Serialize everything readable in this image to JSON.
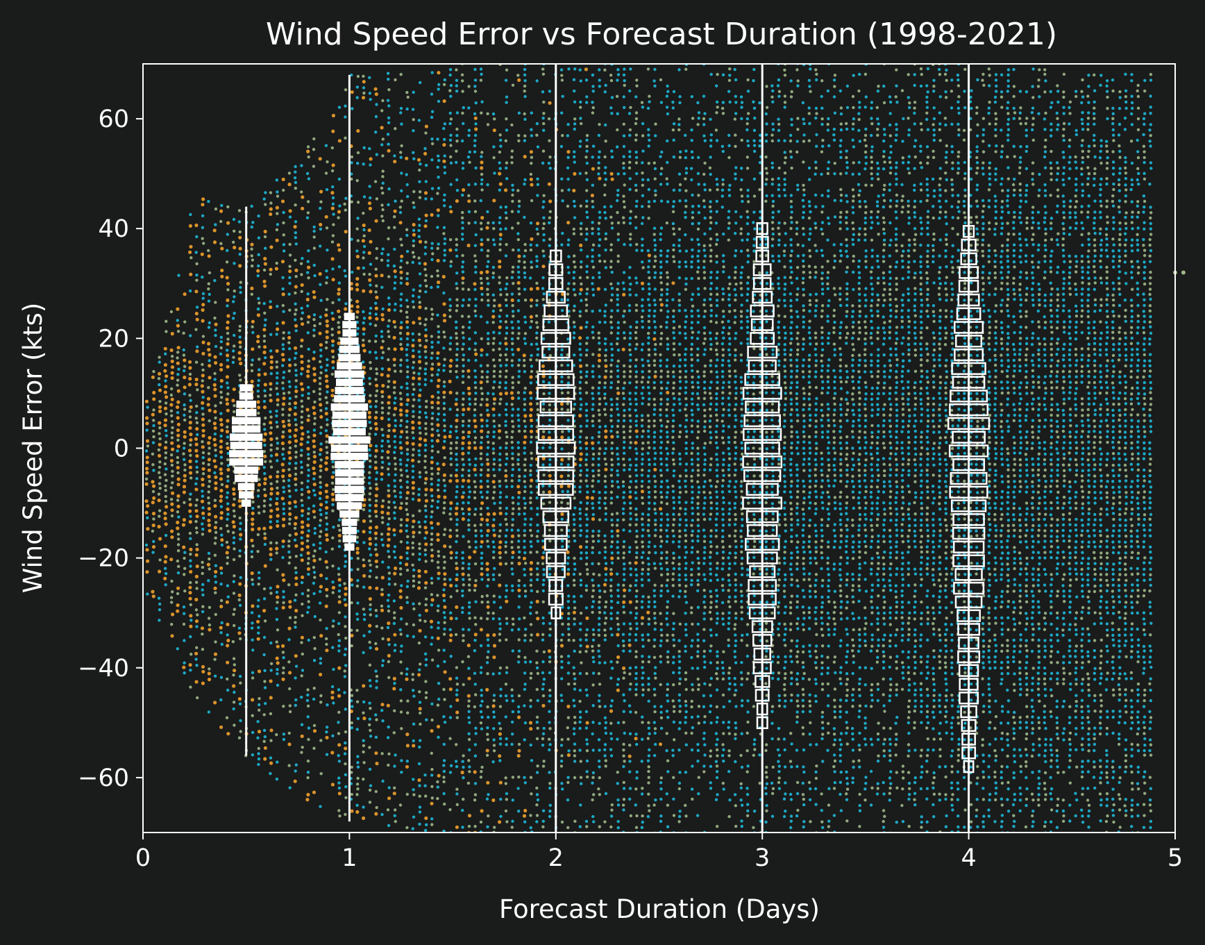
{
  "chart_data": {
    "type": "scatter",
    "title": "Wind Speed Error vs Forecast Duration (1998-2021)",
    "xlabel": "Forecast Duration (Days)",
    "ylabel": "Wind Speed Error (kts)",
    "xlim": [
      0,
      5
    ],
    "ylim": [
      -70,
      70
    ],
    "xticks": [
      0,
      1,
      2,
      3,
      4,
      5
    ],
    "yticks": [
      -60,
      -40,
      -20,
      0,
      20,
      40,
      60
    ],
    "grid": false,
    "legend": "none",
    "colors": {
      "background": "#1a1b1b",
      "axes": "#ffffff",
      "text": "#ffffff",
      "scatter_short_lead": "#f0a22e",
      "scatter_mid_lead": "#9fb88a",
      "scatter_long_lead": "#1eb8d8",
      "distribution_markers": "#ffffff"
    },
    "scatter_envelope": [
      {
        "x": 0.0,
        "y_min": -25,
        "y_max": 7
      },
      {
        "x": 0.25,
        "y_min": -45,
        "y_max": 46
      },
      {
        "x": 0.5,
        "y_min": -56,
        "y_max": 44
      },
      {
        "x": 0.75,
        "y_min": -63,
        "y_max": 52
      },
      {
        "x": 1.0,
        "y_min": -68,
        "y_max": 68
      },
      {
        "x": 1.5,
        "y_min": -70,
        "y_max": 70
      },
      {
        "x": 2.0,
        "y_min": -70,
        "y_max": 70
      },
      {
        "x": 3.0,
        "y_min": -70,
        "y_max": 70
      },
      {
        "x": 4.0,
        "y_min": -70,
        "y_max": 70
      },
      {
        "x": 4.88,
        "y_min": -70,
        "y_max": 68
      }
    ],
    "scatter_outliers": [
      {
        "x": 5.0,
        "y": 32
      },
      {
        "x": 5.04,
        "y": 32
      }
    ],
    "distributions": [
      {
        "x": 0.5,
        "y_min": -56,
        "y_max": 44,
        "q_low": -10,
        "q_high": 12,
        "peak": 0,
        "max_half_width_days": 0.09
      },
      {
        "x": 1.0,
        "y_min": -68,
        "y_max": 68,
        "q_low": -18,
        "q_high": 25,
        "peak": 2,
        "max_half_width_days": 0.1
      },
      {
        "x": 2.0,
        "y_min": -70,
        "y_max": 70,
        "q_low": -30,
        "q_high": 36,
        "peak": 2,
        "max_half_width_days": 0.1
      },
      {
        "x": 3.0,
        "y_min": -70,
        "y_max": 70,
        "q_low": -50,
        "q_high": 40,
        "peak": 0,
        "max_half_width_days": 0.1
      },
      {
        "x": 4.0,
        "y_min": -70,
        "y_max": 70,
        "q_low": -58,
        "q_high": 40,
        "peak": 2,
        "max_half_width_days": 0.1
      }
    ]
  }
}
